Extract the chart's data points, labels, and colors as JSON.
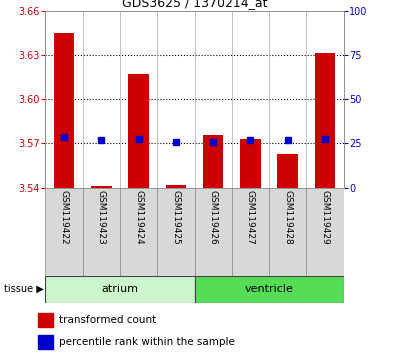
{
  "title": "GDS3625 / 1370214_at",
  "samples": [
    "GSM119422",
    "GSM119423",
    "GSM119424",
    "GSM119425",
    "GSM119426",
    "GSM119427",
    "GSM119428",
    "GSM119429"
  ],
  "red_values": [
    3.645,
    3.541,
    3.617,
    3.542,
    3.576,
    3.573,
    3.563,
    3.631
  ],
  "blue_values": [
    3.574,
    3.572,
    3.573,
    3.571,
    3.571,
    3.572,
    3.572,
    3.573
  ],
  "ylim_left": [
    3.54,
    3.66
  ],
  "yticks_left": [
    3.54,
    3.57,
    3.6,
    3.63,
    3.66
  ],
  "yticks_right": [
    0,
    25,
    50,
    75,
    100
  ],
  "tissue_groups": [
    {
      "label": "atrium",
      "start": 0,
      "end": 3,
      "color": "#ccf5cc"
    },
    {
      "label": "ventricle",
      "start": 4,
      "end": 7,
      "color": "#55dd55"
    }
  ],
  "legend_red": "transformed count",
  "legend_blue": "percentile rank within the sample",
  "bar_color": "#cc0000",
  "dot_color": "#0000cc",
  "bg_color": "#ffffff",
  "gray_color": "#d8d8d8",
  "tissue_label": "tissue"
}
